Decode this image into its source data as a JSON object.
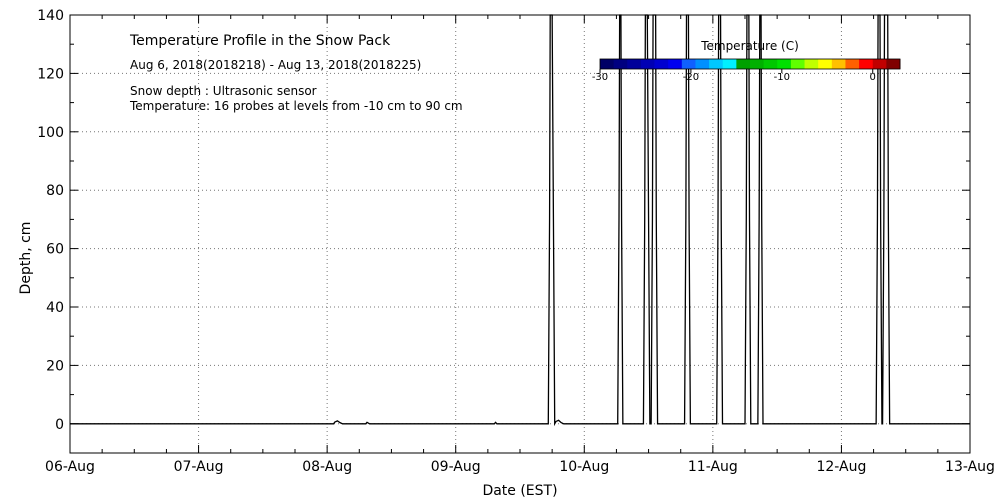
{
  "chart_data": {
    "type": "line",
    "title": "Temperature Profile in the Snow Pack",
    "date_range": "Aug  6, 2018(2018218) - Aug 13, 2018(2018225)",
    "notes": [
      "Snow depth : Ultrasonic sensor",
      "Temperature: 16 probes at levels from -10 cm to 90 cm"
    ],
    "xlabel": "Date (EST)",
    "ylabel": "Depth, cm",
    "xlim": [
      0,
      7
    ],
    "ylim": [
      -10,
      140
    ],
    "x_ticks": [
      {
        "value": 0,
        "label": "06-Aug"
      },
      {
        "value": 1,
        "label": "07-Aug"
      },
      {
        "value": 2,
        "label": "08-Aug"
      },
      {
        "value": 3,
        "label": "09-Aug"
      },
      {
        "value": 4,
        "label": "10-Aug"
      },
      {
        "value": 5,
        "label": "11-Aug"
      },
      {
        "value": 6,
        "label": "12-Aug"
      },
      {
        "value": 7,
        "label": "13-Aug"
      }
    ],
    "y_ticks": [
      0,
      20,
      40,
      60,
      80,
      100,
      120,
      140
    ],
    "grid": true,
    "colorbar": {
      "title": "Temperature (C)",
      "range": [
        -30,
        3
      ],
      "tick_values": [
        -30,
        -20,
        -10,
        0
      ],
      "tick_labels": [
        "-30",
        "-20",
        "-10",
        "0"
      ],
      "colors": [
        "#000066",
        "#000080",
        "#00009a",
        "#0000b4",
        "#0000d0",
        "#0000f0",
        "#1060ff",
        "#0090ff",
        "#00c8ff",
        "#00f0ff",
        "#00a000",
        "#00b000",
        "#00c800",
        "#00e000",
        "#60ff00",
        "#c0ff00",
        "#ffff00",
        "#ffc000",
        "#ff6000",
        "#ff0000",
        "#c00000",
        "#800000"
      ]
    },
    "series": [
      {
        "name": "Snow depth",
        "color": "#000000",
        "points": [
          [
            0,
            0
          ],
          [
            2.05,
            0
          ],
          [
            2.06,
            0.6
          ],
          [
            2.08,
            1
          ],
          [
            2.1,
            0.4
          ],
          [
            2.12,
            0
          ],
          [
            2.3,
            0
          ],
          [
            2.31,
            0.5
          ],
          [
            2.33,
            0
          ],
          [
            3.3,
            0
          ],
          [
            3.31,
            0.5
          ],
          [
            3.32,
            0
          ],
          [
            3.72,
            0
          ],
          [
            3.73,
            70
          ],
          [
            3.735,
            140
          ],
          [
            3.75,
            140
          ],
          [
            3.76,
            70
          ],
          [
            3.77,
            0
          ],
          [
            3.78,
            0.8
          ],
          [
            3.8,
            1.2
          ],
          [
            3.82,
            0.4
          ],
          [
            3.84,
            0
          ],
          [
            4.26,
            0
          ],
          [
            4.27,
            70
          ],
          [
            4.275,
            140
          ],
          [
            4.285,
            140
          ],
          [
            4.29,
            70
          ],
          [
            4.3,
            0
          ],
          [
            4.46,
            0
          ],
          [
            4.47,
            70
          ],
          [
            4.475,
            140
          ],
          [
            4.49,
            140
          ],
          [
            4.5,
            70
          ],
          [
            4.51,
            0
          ],
          [
            4.52,
            0
          ],
          [
            4.53,
            70
          ],
          [
            4.535,
            140
          ],
          [
            4.555,
            140
          ],
          [
            4.56,
            70
          ],
          [
            4.57,
            0
          ],
          [
            4.78,
            0
          ],
          [
            4.79,
            70
          ],
          [
            4.795,
            140
          ],
          [
            4.81,
            140
          ],
          [
            4.815,
            70
          ],
          [
            4.825,
            0
          ],
          [
            5.03,
            0
          ],
          [
            5.04,
            70
          ],
          [
            5.045,
            140
          ],
          [
            5.06,
            140
          ],
          [
            5.065,
            70
          ],
          [
            5.075,
            0
          ],
          [
            5.25,
            0
          ],
          [
            5.26,
            70
          ],
          [
            5.265,
            140
          ],
          [
            5.28,
            140
          ],
          [
            5.285,
            70
          ],
          [
            5.295,
            0
          ],
          [
            5.35,
            0
          ],
          [
            5.36,
            70
          ],
          [
            5.365,
            140
          ],
          [
            5.375,
            140
          ],
          [
            5.38,
            70
          ],
          [
            5.39,
            0
          ],
          [
            6.27,
            0
          ],
          [
            6.28,
            70
          ],
          [
            6.285,
            140
          ],
          [
            6.3,
            140
          ],
          [
            6.305,
            70
          ],
          [
            6.315,
            0
          ],
          [
            6.32,
            0
          ],
          [
            6.33,
            70
          ],
          [
            6.335,
            140
          ],
          [
            6.36,
            140
          ],
          [
            6.365,
            70
          ],
          [
            6.375,
            0
          ],
          [
            7,
            0
          ]
        ]
      }
    ]
  }
}
